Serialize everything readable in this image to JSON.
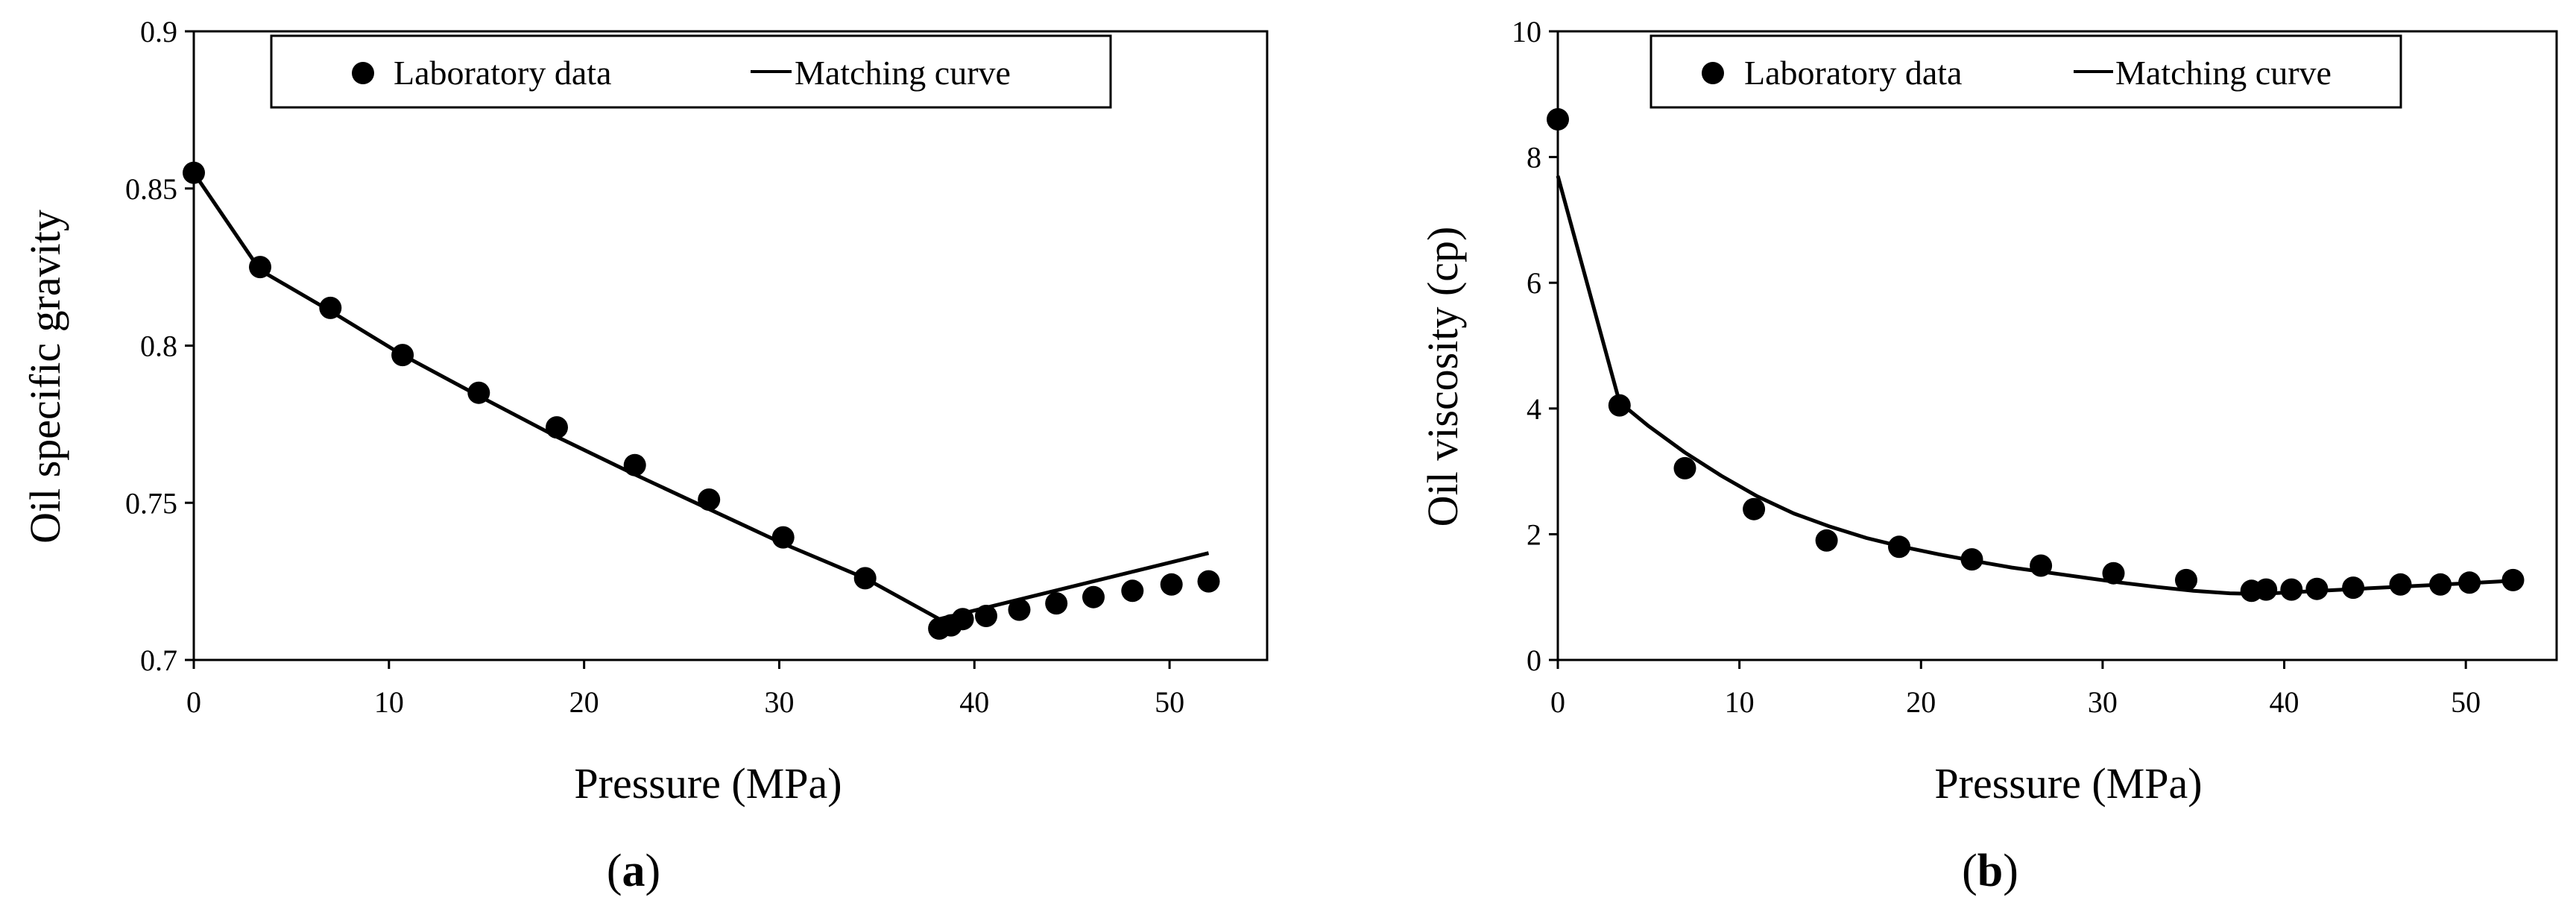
{
  "colors": {
    "ink": "#000000",
    "background": "#ffffff"
  },
  "chart_data": [
    {
      "type": "scatter",
      "panel_label": "(a)",
      "panel_label_prefix": "(",
      "panel_label_letter": "a",
      "panel_label_suffix": ")",
      "title": "",
      "xlabel": "Pressure (MPa)",
      "ylabel": "Oil specific gravity",
      "xlim": [
        0,
        55
      ],
      "ylim": [
        0.7,
        0.9
      ],
      "xticks": [
        "0",
        "10",
        "20",
        "30",
        "40",
        "50"
      ],
      "xtick_values": [
        0,
        10,
        20,
        30,
        40,
        50
      ],
      "yticks": [
        "0.7",
        "0.75",
        "0.8",
        "0.85",
        "0.9"
      ],
      "ytick_values": [
        0.7,
        0.75,
        0.8,
        0.85,
        0.9
      ],
      "grid": false,
      "legend": {
        "placement": "top",
        "entries": [
          "Laboratory data",
          "Matching curve"
        ]
      },
      "series": [
        {
          "name": "Laboratory data",
          "kind": "markers",
          "x": [
            0,
            3.4,
            7,
            10.7,
            14.6,
            18.6,
            22.6,
            26.4,
            30.2,
            34.4,
            38.2,
            38.8,
            39.4,
            40.6,
            42.3,
            44.2,
            46.1,
            48.1,
            50.1,
            52
          ],
          "y": [
            0.855,
            0.825,
            0.812,
            0.797,
            0.785,
            0.774,
            0.762,
            0.751,
            0.739,
            0.726,
            0.71,
            0.711,
            0.713,
            0.714,
            0.716,
            0.718,
            0.72,
            0.722,
            0.724,
            0.725
          ]
        },
        {
          "name": "Matching curve",
          "kind": "line",
          "x": [
            0,
            3.4,
            7,
            10.7,
            14.6,
            18.6,
            22.6,
            26.4,
            30.2,
            34.4,
            38.2,
            52
          ],
          "y": [
            0.855,
            0.824,
            0.811,
            0.797,
            0.784,
            0.771,
            0.759,
            0.748,
            0.737,
            0.726,
            0.713,
            0.734
          ]
        }
      ]
    },
    {
      "type": "scatter",
      "panel_label": "(b)",
      "panel_label_prefix": "(",
      "panel_label_letter": "b",
      "panel_label_suffix": ")",
      "title": "",
      "xlabel": "Pressure (MPa)",
      "ylabel": "Oil viscosity (cp)",
      "xlim": [
        0,
        55
      ],
      "ylim": [
        0,
        10
      ],
      "xticks": [
        "0",
        "10",
        "20",
        "30",
        "40",
        "50"
      ],
      "xtick_values": [
        0,
        10,
        20,
        30,
        40,
        50
      ],
      "yticks": [
        "0",
        "2",
        "4",
        "6",
        "8",
        "10"
      ],
      "ytick_values": [
        0,
        2,
        4,
        6,
        8,
        10
      ],
      "grid": false,
      "legend": {
        "placement": "top",
        "entries": [
          "Laboratory data",
          "Matching curve"
        ]
      },
      "series": [
        {
          "name": "Laboratory data",
          "kind": "markers",
          "x": [
            0,
            3.4,
            7,
            10.8,
            14.8,
            18.8,
            22.8,
            26.6,
            30.6,
            34.6,
            38.2,
            39,
            40.4,
            41.8,
            43.8,
            46.4,
            48.6,
            50.2,
            52.6
          ],
          "y": [
            8.6,
            4.05,
            3.05,
            2.4,
            1.9,
            1.8,
            1.6,
            1.5,
            1.38,
            1.27,
            1.1,
            1.12,
            1.12,
            1.13,
            1.15,
            1.2,
            1.2,
            1.23,
            1.27
          ]
        },
        {
          "name": "Matching curve",
          "kind": "line",
          "x": [
            0,
            3.4,
            5,
            7,
            9,
            11,
            13,
            15,
            17,
            19,
            21,
            23,
            25,
            27,
            29,
            31,
            33,
            35,
            37,
            38.5,
            40,
            42,
            44,
            46,
            48,
            50,
            52.6
          ],
          "y": [
            7.7,
            4.1,
            3.72,
            3.3,
            2.93,
            2.6,
            2.33,
            2.12,
            1.94,
            1.8,
            1.68,
            1.57,
            1.47,
            1.39,
            1.31,
            1.23,
            1.16,
            1.1,
            1.06,
            1.05,
            1.07,
            1.1,
            1.13,
            1.16,
            1.19,
            1.22,
            1.26
          ]
        }
      ]
    }
  ]
}
